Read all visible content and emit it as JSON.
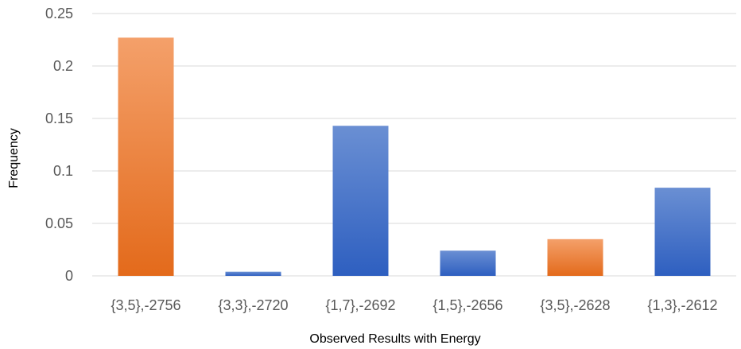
{
  "chart_data": {
    "type": "bar",
    "title": "",
    "xlabel": "Observed Results with Energy",
    "ylabel": "Frequency",
    "ylim": [
      0,
      0.25
    ],
    "yticks": [
      "0",
      "0.05",
      "0.1",
      "0.15",
      "0.2",
      "0.25"
    ],
    "grid": true,
    "legend": "none",
    "categories": [
      "{3,5},-2756",
      "{3,3},-2720",
      "{1,7},-2692",
      "{1,5},-2656",
      "{3,5},-2628",
      "{1,3},-2612"
    ],
    "values": [
      0.227,
      0.004,
      0.143,
      0.024,
      0.035,
      0.084
    ],
    "bar_color_groups": [
      "orange",
      "blue",
      "blue",
      "blue",
      "orange",
      "blue"
    ]
  },
  "colors": {
    "orange_top": "#F4A06A",
    "orange_bottom": "#E36A1B",
    "blue_top": "#6A8FD3",
    "blue_bottom": "#2E5FC0",
    "grid": "#D9D9D9",
    "tick_text": "#595959"
  }
}
